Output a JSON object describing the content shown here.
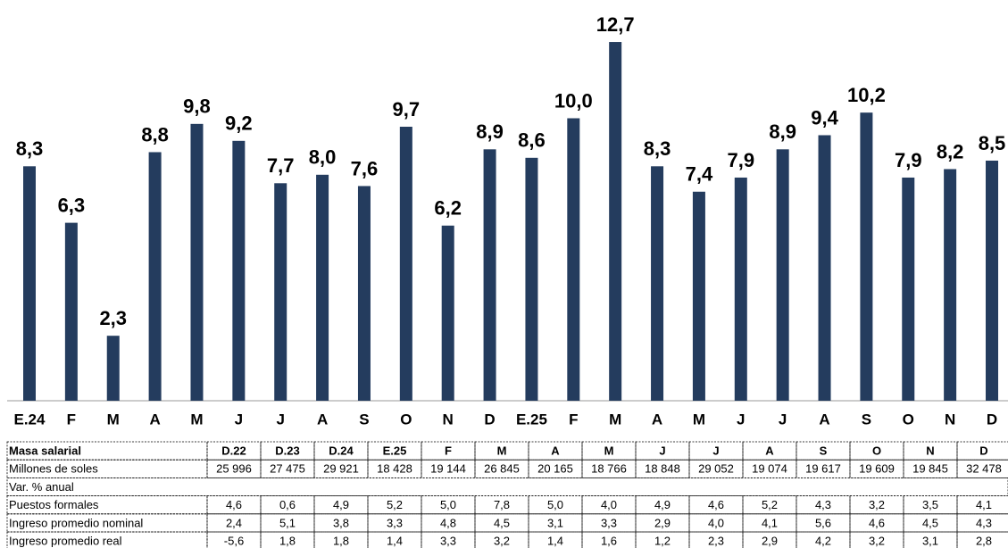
{
  "chart_data": {
    "type": "bar",
    "categories": [
      "E.24",
      "F",
      "M",
      "A",
      "M",
      "J",
      "J",
      "A",
      "S",
      "O",
      "N",
      "D",
      "E.25",
      "F",
      "M",
      "A",
      "M",
      "J",
      "J",
      "A",
      "S",
      "O",
      "N",
      "D"
    ],
    "values": [
      8.3,
      6.3,
      2.3,
      8.8,
      9.8,
      9.2,
      7.7,
      8.0,
      7.6,
      9.7,
      6.2,
      8.9,
      8.6,
      10.0,
      12.7,
      8.3,
      7.4,
      7.9,
      8.9,
      9.4,
      10.2,
      7.9,
      8.2,
      8.5
    ],
    "value_labels": [
      "8,3",
      "6,3",
      "2,3",
      "8,8",
      "9,8",
      "9,2",
      "7,7",
      "8,0",
      "7,6",
      "9,7",
      "6,2",
      "8,9",
      "8,6",
      "10,0",
      "12,7",
      "8,3",
      "7,4",
      "7,9",
      "8,9",
      "9,4",
      "10,2",
      "7,9",
      "8,2",
      "8,5"
    ],
    "color": "#243c5e"
  },
  "table": {
    "header": [
      "Masa salarial",
      "D.22",
      "D.23",
      "D.24",
      "E.25",
      "F",
      "M",
      "A",
      "M",
      "J",
      "J",
      "A",
      "S",
      "O",
      "N",
      "D"
    ],
    "rows": [
      [
        "Millones de soles",
        "25 996",
        "27 475",
        "29 921",
        "18 428",
        "19 144",
        "26 845",
        "20 165",
        "18 766",
        "18 848",
        "29 052",
        "19 074",
        "19 617",
        "19 609",
        "19 845",
        "32 478"
      ],
      [
        "Var. % anual"
      ],
      [
        "Puestos formales",
        "4,6",
        "0,6",
        "4,9",
        "5,2",
        "5,0",
        "7,8",
        "5,0",
        "4,0",
        "4,9",
        "4,6",
        "5,2",
        "4,3",
        "3,2",
        "3,5",
        "4,1"
      ],
      [
        "Ingreso promedio nominal",
        "2,4",
        "5,1",
        "3,8",
        "3,3",
        "4,8",
        "4,5",
        "3,1",
        "3,3",
        "2,9",
        "4,0",
        "4,1",
        "5,6",
        "4,6",
        "4,5",
        "4,3"
      ],
      [
        "Ingreso promedio real",
        "-5,6",
        "1,8",
        "1,8",
        "1,4",
        "3,3",
        "3,2",
        "1,4",
        "1,6",
        "1,2",
        "2,3",
        "2,9",
        "4,2",
        "3,2",
        "3,1",
        "2,8"
      ]
    ]
  }
}
